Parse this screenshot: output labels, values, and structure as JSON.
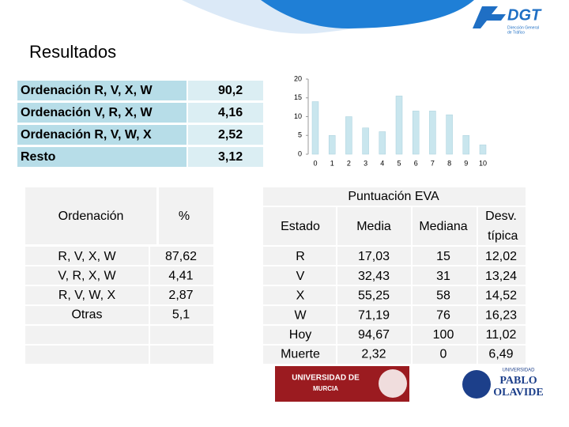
{
  "header": {
    "title": "Resultados",
    "logo": "DGT",
    "logo_subtitle": [
      "Dirección General",
      "de Tráfico"
    ]
  },
  "summary_table": {
    "rows": [
      [
        "Ordenación R, V, X, W",
        "90,2"
      ],
      [
        "Ordenación V, R, X, W",
        "4,16"
      ],
      [
        "Ordenación R, V, W, X",
        "2,52"
      ],
      [
        "Resto",
        "3,12"
      ]
    ]
  },
  "chart_data": {
    "type": "bar",
    "x": [
      0,
      1,
      2,
      3,
      4,
      5,
      6,
      7,
      8,
      9,
      10
    ],
    "values": [
      14,
      5,
      10,
      7,
      6,
      15.5,
      11.5,
      11.5,
      10.5,
      5,
      2.5
    ],
    "color": "#c9e6ee",
    "ylim": [
      0,
      20
    ],
    "yticks": [
      0,
      5,
      10,
      15,
      20
    ]
  },
  "order_table": {
    "columns": [
      "Ordenación",
      "%"
    ],
    "rows": [
      [
        "R, V, X, W",
        "87,62"
      ],
      [
        "V, R, X, W",
        "4,41"
      ],
      [
        "R, V, W, X",
        "2,87"
      ],
      [
        "Otras",
        "5,1"
      ]
    ]
  },
  "eva_table": {
    "title": "Puntuación EVA",
    "columns": [
      "Estado",
      "Media",
      "Mediana",
      "Desv. típica"
    ],
    "rows": [
      [
        "R",
        "17,03",
        "15",
        "12,02"
      ],
      [
        "V",
        "32,43",
        "31",
        "13,24"
      ],
      [
        "X",
        "55,25",
        "58",
        "14,52"
      ],
      [
        "W",
        "71,19",
        "76",
        "16,23"
      ],
      [
        "Hoy",
        "94,67",
        "100",
        "11,02"
      ],
      [
        "Muerte",
        "2,32",
        "0",
        "6,49"
      ]
    ]
  },
  "footer": {
    "logos": [
      "UNIVERSIDAD DE",
      "MURCIA",
      "UNIVERSIDAD",
      "PABLO",
      "OLAVIDE"
    ]
  }
}
